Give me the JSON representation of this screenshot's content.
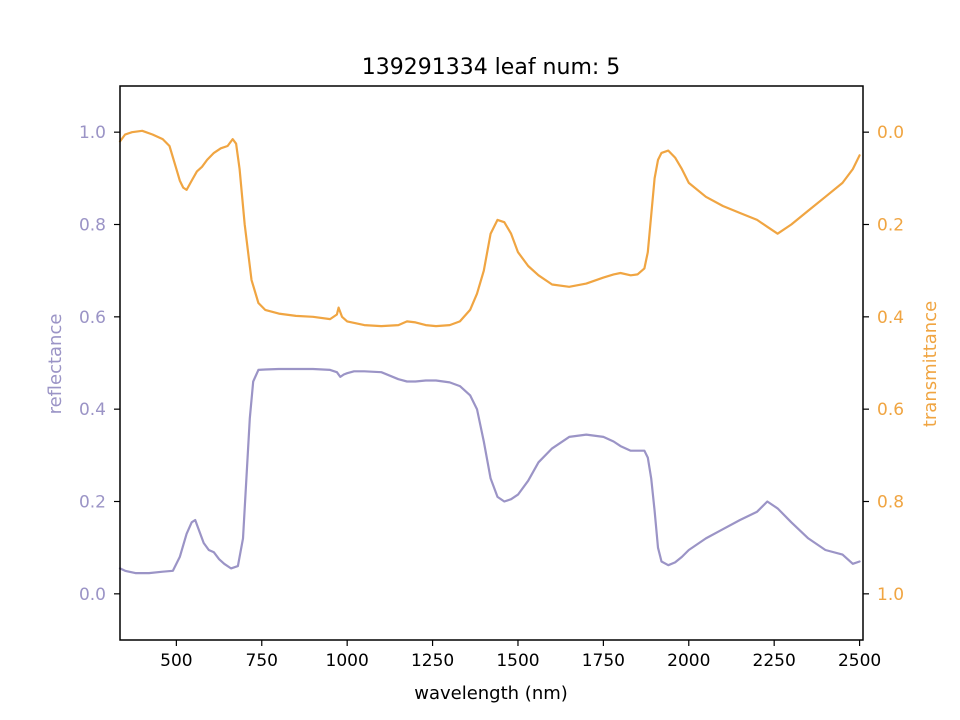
{
  "chart_data": {
    "type": "line",
    "title": "139291334 leaf num: 5",
    "xlabel": "wavelength (nm)",
    "ylabel_left": "reflectance",
    "ylabel_right": "transmittance",
    "xlim": [
      335,
      2510
    ],
    "ylim_left": [
      -0.1,
      1.1
    ],
    "ylim_right_inverted": [
      1.1,
      -0.1
    ],
    "x_ticks": [
      500,
      750,
      1000,
      1250,
      1500,
      1750,
      2000,
      2250,
      2500
    ],
    "x_tick_labels": [
      "500",
      "750",
      "1000",
      "1250",
      "1500",
      "1750",
      "2000",
      "2250",
      "2500"
    ],
    "y_left_ticks": [
      0.0,
      0.2,
      0.4,
      0.6,
      0.8,
      1.0
    ],
    "y_left_tick_labels": [
      "0.0",
      "0.2",
      "0.4",
      "0.6",
      "0.8",
      "1.0"
    ],
    "y_right_ticks": [
      0.0,
      0.2,
      0.4,
      0.6,
      0.8,
      1.0
    ],
    "y_right_tick_labels": [
      "0.0",
      "0.2",
      "0.4",
      "0.6",
      "0.8",
      "1.0"
    ],
    "grid": false,
    "series": [
      {
        "axis": "left",
        "color": "#9b94c6",
        "x": [
          335,
          350,
          380,
          420,
          460,
          490,
          510,
          530,
          545,
          555,
          565,
          580,
          595,
          610,
          625,
          640,
          660,
          680,
          695,
          705,
          715,
          725,
          740,
          760,
          800,
          850,
          900,
          950,
          970,
          980,
          990,
          1000,
          1020,
          1050,
          1100,
          1150,
          1175,
          1200,
          1230,
          1260,
          1300,
          1330,
          1360,
          1380,
          1400,
          1420,
          1440,
          1460,
          1480,
          1500,
          1530,
          1560,
          1600,
          1650,
          1700,
          1750,
          1780,
          1800,
          1830,
          1850,
          1870,
          1880,
          1890,
          1900,
          1910,
          1920,
          1940,
          1960,
          1980,
          2000,
          2050,
          2100,
          2150,
          2200,
          2230,
          2260,
          2300,
          2350,
          2400,
          2450,
          2480,
          2500
        ],
        "y": [
          0.055,
          0.05,
          0.045,
          0.045,
          0.048,
          0.05,
          0.08,
          0.13,
          0.155,
          0.16,
          0.14,
          0.11,
          0.095,
          0.09,
          0.075,
          0.065,
          0.055,
          0.06,
          0.12,
          0.25,
          0.38,
          0.46,
          0.485,
          0.486,
          0.487,
          0.487,
          0.487,
          0.485,
          0.48,
          0.47,
          0.475,
          0.478,
          0.482,
          0.482,
          0.48,
          0.465,
          0.46,
          0.46,
          0.462,
          0.462,
          0.458,
          0.45,
          0.43,
          0.4,
          0.33,
          0.25,
          0.21,
          0.2,
          0.205,
          0.215,
          0.245,
          0.285,
          0.315,
          0.34,
          0.345,
          0.34,
          0.33,
          0.32,
          0.31,
          0.31,
          0.31,
          0.295,
          0.25,
          0.18,
          0.1,
          0.07,
          0.062,
          0.068,
          0.08,
          0.095,
          0.12,
          0.14,
          0.16,
          0.178,
          0.2,
          0.185,
          0.155,
          0.12,
          0.095,
          0.085,
          0.065,
          0.07
        ]
      },
      {
        "axis": "right",
        "color": "#f0a542",
        "x": [
          335,
          350,
          370,
          400,
          430,
          460,
          480,
          500,
          510,
          520,
          530,
          545,
          560,
          575,
          590,
          610,
          630,
          650,
          665,
          675,
          685,
          700,
          720,
          740,
          760,
          800,
          850,
          900,
          950,
          970,
          975,
          985,
          1000,
          1050,
          1100,
          1150,
          1175,
          1200,
          1230,
          1260,
          1300,
          1330,
          1360,
          1380,
          1400,
          1420,
          1440,
          1460,
          1480,
          1500,
          1530,
          1560,
          1600,
          1650,
          1700,
          1750,
          1780,
          1800,
          1830,
          1850,
          1870,
          1880,
          1890,
          1900,
          1910,
          1920,
          1940,
          1960,
          1980,
          2000,
          2050,
          2100,
          2150,
          2200,
          2230,
          2260,
          2300,
          2350,
          2400,
          2450,
          2480,
          2500
        ],
        "y": [
          0.02,
          0.005,
          0.0,
          -0.003,
          0.005,
          0.015,
          0.03,
          0.08,
          0.105,
          0.12,
          0.125,
          0.105,
          0.085,
          0.075,
          0.06,
          0.045,
          0.035,
          0.03,
          0.015,
          0.025,
          0.08,
          0.2,
          0.32,
          0.37,
          0.385,
          0.393,
          0.398,
          0.4,
          0.405,
          0.395,
          0.38,
          0.4,
          0.41,
          0.418,
          0.42,
          0.418,
          0.41,
          0.412,
          0.418,
          0.42,
          0.418,
          0.41,
          0.385,
          0.35,
          0.3,
          0.22,
          0.19,
          0.195,
          0.22,
          0.26,
          0.29,
          0.31,
          0.33,
          0.335,
          0.328,
          0.315,
          0.308,
          0.305,
          0.31,
          0.308,
          0.295,
          0.26,
          0.18,
          0.1,
          0.06,
          0.045,
          0.04,
          0.055,
          0.08,
          0.11,
          0.14,
          0.16,
          0.175,
          0.19,
          0.205,
          0.22,
          0.2,
          0.17,
          0.14,
          0.11,
          0.08,
          0.05
        ]
      }
    ]
  }
}
